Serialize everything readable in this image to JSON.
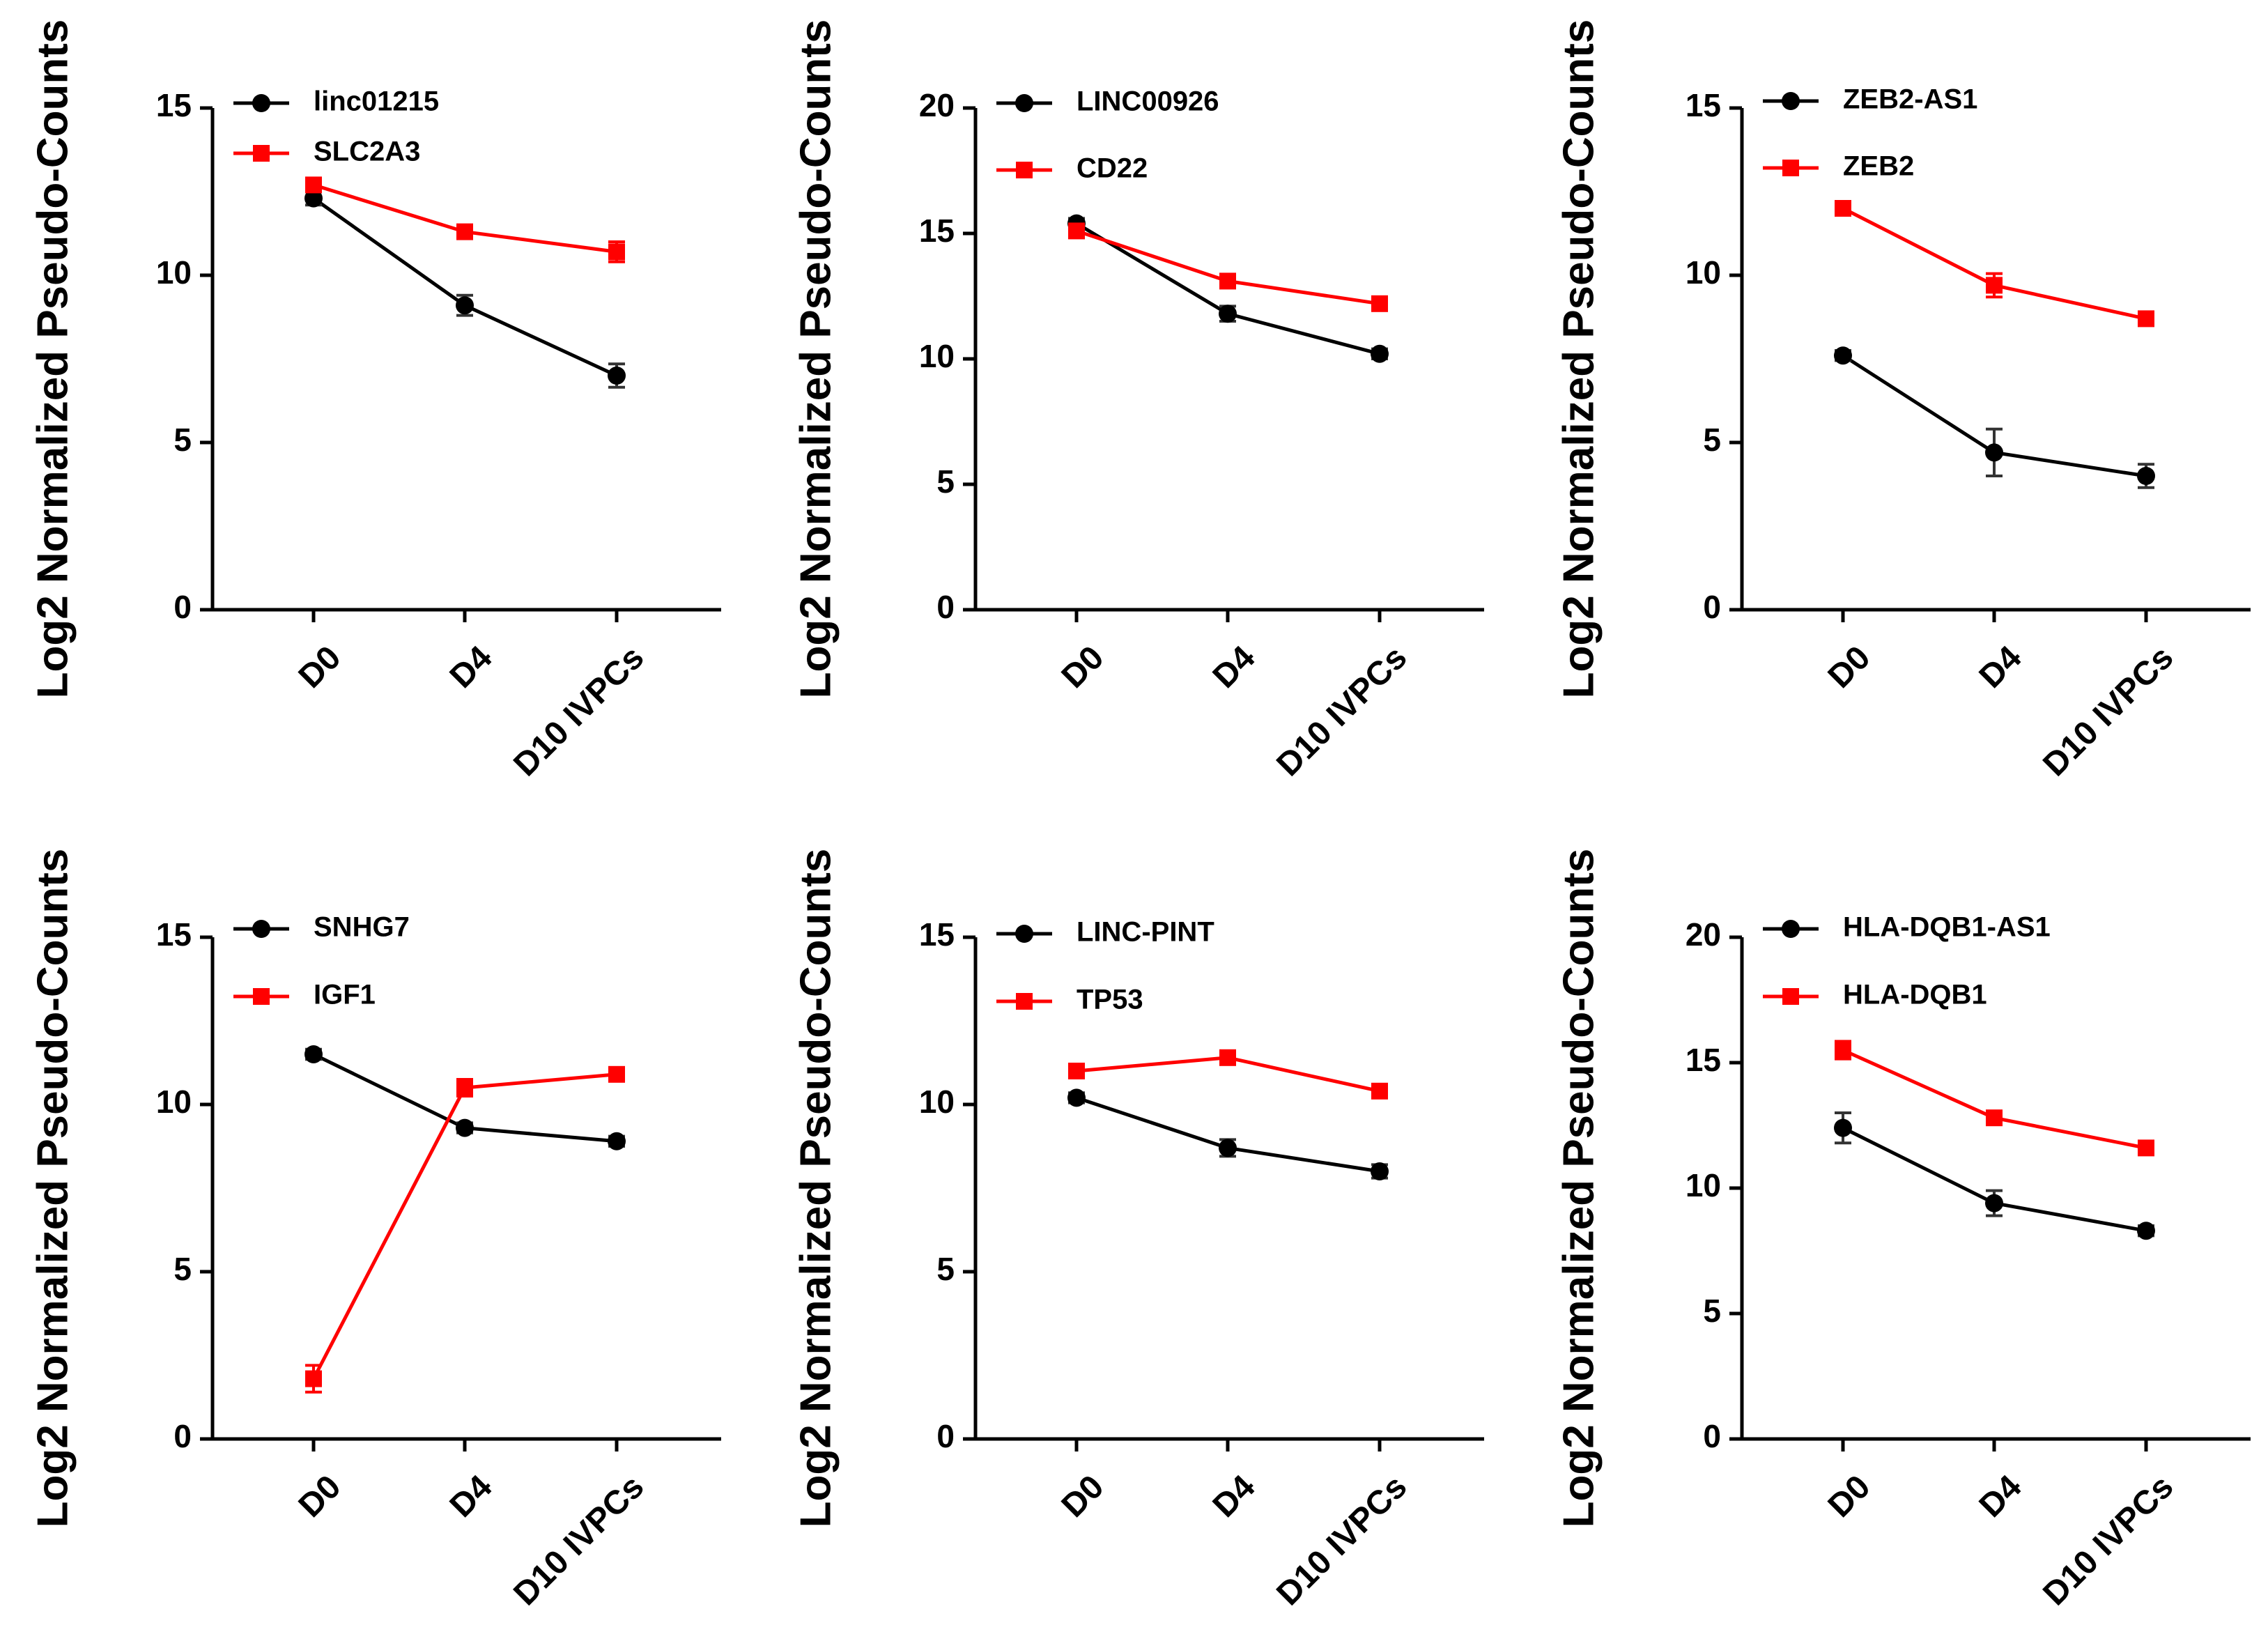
{
  "chart_data": [
    {
      "type": "line",
      "ylabel": "Log2 Normalized Pseudo-Counts",
      "categories": [
        "D0",
        "D4",
        "D10 IVPCs"
      ],
      "ylim": [
        0,
        15
      ],
      "yticks": [
        0,
        5,
        10,
        15
      ],
      "series": [
        {
          "name": "linc01215",
          "color": "#000000",
          "marker": "circle",
          "values": [
            12.3,
            9.1,
            7.0
          ],
          "errors": [
            0.2,
            0.3,
            0.35
          ]
        },
        {
          "name": "SLC2A3",
          "color": "#ff0000",
          "marker": "square",
          "values": [
            12.7,
            11.3,
            10.7
          ],
          "errors": [
            0.15,
            0.15,
            0.3
          ]
        }
      ]
    },
    {
      "type": "line",
      "ylabel": "Log2 Normalized Pseudo-Counts",
      "categories": [
        "D0",
        "D4",
        "D10 IVPCs"
      ],
      "ylim": [
        0,
        20
      ],
      "yticks": [
        0,
        5,
        10,
        15,
        20
      ],
      "series": [
        {
          "name": "LINC00926",
          "color": "#000000",
          "marker": "circle",
          "values": [
            15.4,
            11.8,
            10.2
          ],
          "errors": [
            0.2,
            0.3,
            0.2
          ]
        },
        {
          "name": "CD22",
          "color": "#ff0000",
          "marker": "square",
          "values": [
            15.1,
            13.1,
            12.2
          ],
          "errors": [
            0.15,
            0.2,
            0.2
          ]
        }
      ]
    },
    {
      "type": "line",
      "ylabel": "Log2 Normalized Pseudo-Counts",
      "categories": [
        "D0",
        "D4",
        "D10 IVPCs"
      ],
      "ylim": [
        0,
        15
      ],
      "yticks": [
        0,
        5,
        10,
        15
      ],
      "series": [
        {
          "name": "ZEB2-AS1",
          "color": "#000000",
          "marker": "circle",
          "values": [
            7.6,
            4.7,
            4.0
          ],
          "errors": [
            0.15,
            0.7,
            0.35
          ]
        },
        {
          "name": "ZEB2",
          "color": "#ff0000",
          "marker": "square",
          "values": [
            12.0,
            9.7,
            8.7
          ],
          "errors": [
            0.15,
            0.35,
            0.15
          ]
        }
      ]
    },
    {
      "type": "line",
      "ylabel": "Log2 Normalized Pseudo-Counts",
      "categories": [
        "D0",
        "D4",
        "D10 IVPCs"
      ],
      "ylim": [
        0,
        15
      ],
      "yticks": [
        0,
        5,
        10,
        15
      ],
      "series": [
        {
          "name": "SNHG7",
          "color": "#000000",
          "marker": "circle",
          "values": [
            11.5,
            9.3,
            8.9
          ],
          "errors": [
            0.15,
            0.15,
            0.15
          ]
        },
        {
          "name": "IGF1",
          "color": "#ff0000",
          "marker": "square",
          "values": [
            1.8,
            10.5,
            10.9
          ],
          "errors": [
            0.4,
            0.25,
            0.2
          ]
        }
      ]
    },
    {
      "type": "line",
      "ylabel": "Log2 Normalized Pseudo-Counts",
      "categories": [
        "D0",
        "D4",
        "D10 IVPCs"
      ],
      "ylim": [
        0,
        15
      ],
      "yticks": [
        0,
        5,
        10,
        15
      ],
      "series": [
        {
          "name": "LINC-PINT",
          "color": "#000000",
          "marker": "circle",
          "values": [
            10.2,
            8.7,
            8.0
          ],
          "errors": [
            0.15,
            0.25,
            0.2
          ]
        },
        {
          "name": "TP53",
          "color": "#ff0000",
          "marker": "square",
          "values": [
            11.0,
            11.4,
            10.4
          ],
          "errors": [
            0.15,
            0.15,
            0.15
          ]
        }
      ]
    },
    {
      "type": "line",
      "ylabel": "Log2 Normalized Pseudo-Counts",
      "categories": [
        "D0",
        "D4",
        "D10 IVPCs"
      ],
      "ylim": [
        0,
        20
      ],
      "yticks": [
        0,
        5,
        10,
        15,
        20
      ],
      "series": [
        {
          "name": "HLA-DQB1-AS1",
          "color": "#000000",
          "marker": "circle",
          "values": [
            12.4,
            9.4,
            8.3
          ],
          "errors": [
            0.6,
            0.5,
            0.2
          ]
        },
        {
          "name": "HLA-DQB1",
          "color": "#ff0000",
          "marker": "square",
          "values": [
            15.5,
            12.8,
            11.6
          ],
          "errors": [
            0.35,
            0.2,
            0.2
          ]
        }
      ]
    }
  ]
}
